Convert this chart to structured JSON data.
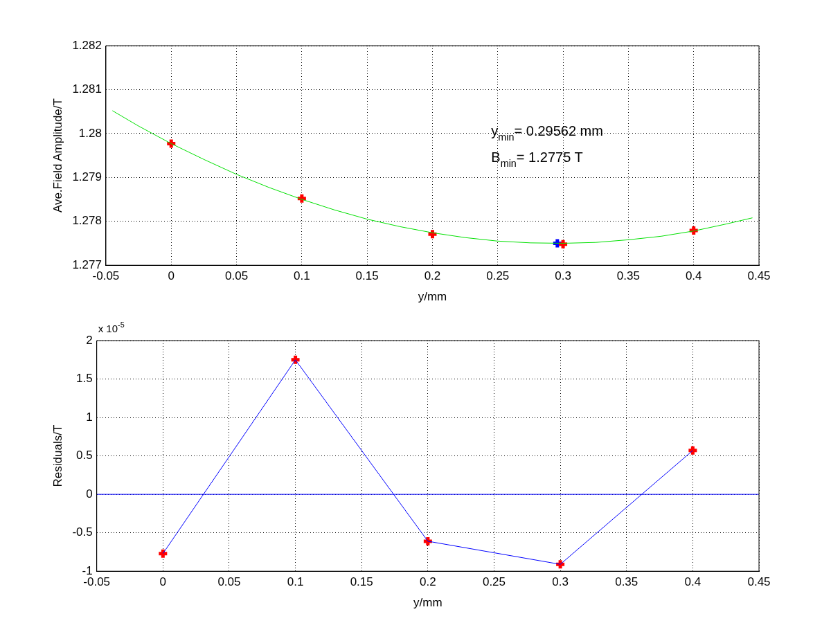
{
  "chart_data": [
    {
      "type": "scatter",
      "xlabel": "y/mm",
      "ylabel": "Ave.Field Amplitude/T",
      "xlim": [
        -0.05,
        0.45
      ],
      "ylim": [
        1.277,
        1.282
      ],
      "xticks": [
        -0.05,
        0,
        0.05,
        0.1,
        0.15,
        0.2,
        0.25,
        0.3,
        0.35,
        0.4,
        0.45
      ],
      "yticks": [
        1.277,
        1.278,
        1.279,
        1.28,
        1.281,
        1.282
      ],
      "grid": true,
      "annotations": [
        "y$_{min}$= 0.29562 mm",
        "B$_{min}$= 1.2775 T"
      ],
      "series": [
        {
          "type": "line",
          "color": "#00e000",
          "marker": "none",
          "x": [
            -0.045,
            -0.025,
            0,
            0.025,
            0.05,
            0.075,
            0.1,
            0.125,
            0.15,
            0.175,
            0.2,
            0.225,
            0.25,
            0.275,
            0.3,
            0.325,
            0.35,
            0.375,
            0.4,
            0.425,
            0.445
          ],
          "values": [
            1.28052,
            1.28017,
            1.27977,
            1.27941,
            1.27907,
            1.27877,
            1.2785,
            1.27826,
            1.27805,
            1.27788,
            1.27774,
            1.27763,
            1.27755,
            1.27751,
            1.2775,
            1.27752,
            1.27758,
            1.27766,
            1.27778,
            1.27794,
            1.27808
          ]
        },
        {
          "color": "#ff0000",
          "marker": "cross",
          "x": [
            0,
            0.1,
            0.2,
            0.3,
            0.4
          ],
          "values": [
            1.27977,
            1.27852,
            1.27771,
            1.27748,
            1.27779
          ]
        },
        {
          "color": "#0000ff",
          "marker": "cross",
          "x": [
            0.29562
          ],
          "values": [
            1.2775
          ]
        }
      ]
    },
    {
      "type": "line",
      "xlabel": "y/mm",
      "ylabel": "Residuals/T",
      "xlim": [
        -0.05,
        0.45
      ],
      "ylim": [
        -1,
        2
      ],
      "xticks": [
        -0.05,
        0,
        0.05,
        0.1,
        0.15,
        0.2,
        0.25,
        0.3,
        0.35,
        0.4,
        0.45
      ],
      "yticks": [
        -1,
        -0.5,
        0,
        0.5,
        1,
        1.5,
        2
      ],
      "grid": true,
      "annotations": [
        "x 10$^{-5}$"
      ],
      "ref_lines": [
        {
          "axis": "y",
          "value": 0,
          "color": "#0000ff"
        }
      ],
      "series": [
        {
          "color": "#0000ff",
          "marker": "none",
          "x": [
            0,
            0.1,
            0.2,
            0.3,
            0.4
          ],
          "values": [
            -0.77,
            1.75,
            -0.61,
            -0.91,
            0.57
          ]
        },
        {
          "type": "scatter",
          "color": "#ff0000",
          "marker": "cross",
          "x": [
            0,
            0.1,
            0.2,
            0.3,
            0.4
          ],
          "values": [
            -0.77,
            1.75,
            -0.61,
            -0.91,
            0.57
          ]
        }
      ]
    }
  ]
}
